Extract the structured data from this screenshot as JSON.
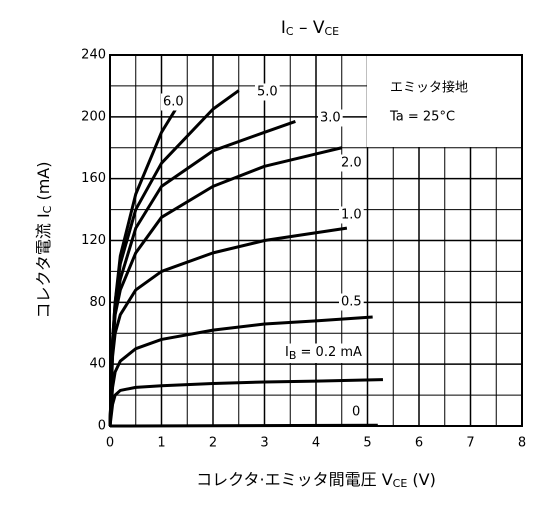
{
  "chart_data": {
    "type": "line",
    "title": [
      "I",
      "C",
      " – V",
      "CE"
    ],
    "x_label": [
      "コレクタ·エミッタ間電圧    V",
      "CE",
      "    (V)"
    ],
    "y_label": [
      "コレクタ電流    I",
      "C",
      "    (mA)"
    ],
    "annotations": [
      "エミッタ接地",
      "Ta = 25°C"
    ],
    "xlim": [
      0,
      8
    ],
    "xticks": [
      0,
      1,
      2,
      3,
      4,
      5,
      6,
      7,
      8
    ],
    "ylim": [
      0,
      240
    ],
    "yticks": [
      0,
      40,
      80,
      120,
      160,
      200,
      240
    ],
    "grid": true,
    "minor_grid": true,
    "color": "#000000",
    "series": [
      {
        "name": "6.0",
        "x": [
          0,
          0.05,
          0.1,
          0.2,
          0.5,
          1,
          1.35
        ],
        "values": [
          0,
          55,
          80,
          110,
          150,
          190,
          209
        ]
      },
      {
        "name": "5.0",
        "x": [
          0,
          0.05,
          0.1,
          0.2,
          0.5,
          1,
          2,
          2.5
        ],
        "values": [
          0,
          55,
          80,
          105,
          140,
          170,
          205,
          217
        ]
      },
      {
        "name": "3.0",
        "x": [
          0,
          0.05,
          0.1,
          0.2,
          0.5,
          1,
          2,
          3,
          3.6
        ],
        "values": [
          0,
          52,
          75,
          95,
          128,
          155,
          178,
          190,
          197
        ]
      },
      {
        "name": "2.0",
        "x": [
          0,
          0.05,
          0.1,
          0.2,
          0.5,
          1,
          2,
          3,
          4,
          4.5
        ],
        "values": [
          0,
          50,
          72,
          88,
          112,
          135,
          155,
          168,
          176,
          180
        ]
      },
      {
        "name": "1.0",
        "x": [
          0,
          0.05,
          0.1,
          0.2,
          0.5,
          1,
          2,
          3,
          4,
          4.6
        ],
        "values": [
          0,
          45,
          60,
          72,
          88,
          100,
          112,
          120,
          125,
          128
        ]
      },
      {
        "name": "0.5",
        "x": [
          0,
          0.05,
          0.1,
          0.2,
          0.5,
          1,
          2,
          3,
          4,
          5.1
        ],
        "values": [
          0,
          25,
          35,
          42,
          50,
          56,
          62,
          66,
          68,
          70.5
        ]
      },
      {
        "name": [
          "I",
          "B",
          " = 0.2 mA"
        ],
        "x": [
          0,
          0.05,
          0.1,
          0.2,
          0.5,
          1,
          2,
          3,
          4,
          5.3
        ],
        "values": [
          0,
          14,
          20,
          23,
          25,
          26,
          27.5,
          28.5,
          29,
          30
        ]
      },
      {
        "name": "0",
        "x": [
          0,
          5.2
        ],
        "values": [
          0,
          0.5
        ]
      }
    ]
  }
}
